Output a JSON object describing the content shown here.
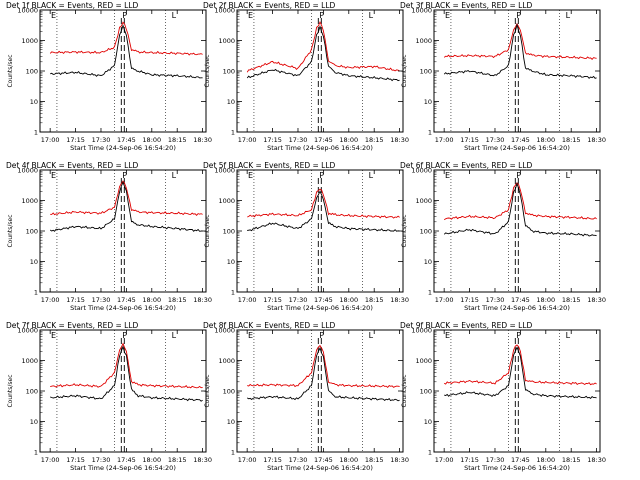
{
  "figure": {
    "title_prefix": "Det ",
    "title_suffix": " BLACK = Events, RED = LLD",
    "xlabel": "Start Time (24-Sep-06 16:54:20)",
    "ylabel": "Counts/sec",
    "x_ticks": [
      "17:00",
      "17:15",
      "17:30",
      "17:45",
      "18:00",
      "18:15",
      "18:30"
    ],
    "y_ticks": [
      "1",
      "10",
      "100",
      "1000",
      "10000"
    ],
    "markers": [
      "E",
      "P",
      "L"
    ],
    "colors": {
      "events": "#000000",
      "lld": "#e00000"
    }
  },
  "chart_data": [
    {
      "type": "line",
      "title": "Det 1f BLACK = Events, RED = LLD",
      "xlabel": "Start Time (24-Sep-06 16:54:20)",
      "ylabel": "Counts/sec",
      "y_scale": "log",
      "ylim": [
        1,
        10000
      ],
      "xlim": [
        "16:54",
        "18:32"
      ],
      "x": [
        "17:00",
        "17:15",
        "17:30",
        "17:38",
        "17:41",
        "17:43",
        "17:45",
        "17:48",
        "17:52",
        "18:00",
        "18:15",
        "18:30"
      ],
      "series": [
        {
          "name": "Events",
          "values": [
            80,
            90,
            70,
            150,
            1500,
            3000,
            1500,
            120,
            100,
            75,
            70,
            60
          ]
        },
        {
          "name": "LLD",
          "values": [
            400,
            420,
            400,
            600,
            2500,
            4000,
            2500,
            500,
            420,
            400,
            380,
            350
          ]
        }
      ]
    },
    {
      "type": "line",
      "title": "Det 2f BLACK = Events, RED = LLD",
      "xlabel": "Start Time (24-Sep-06 16:54:20)",
      "ylabel": "Counts/sec",
      "y_scale": "log",
      "ylim": [
        1,
        10000
      ],
      "xlim": [
        "16:54",
        "18:32"
      ],
      "x": [
        "17:00",
        "17:15",
        "17:30",
        "17:38",
        "17:41",
        "17:43",
        "17:45",
        "17:48",
        "17:52",
        "18:00",
        "18:15",
        "18:30"
      ],
      "series": [
        {
          "name": "Events",
          "values": [
            60,
            110,
            70,
            200,
            1500,
            2700,
            1400,
            140,
            90,
            70,
            60,
            50
          ]
        },
        {
          "name": "LLD",
          "values": [
            100,
            200,
            120,
            500,
            2500,
            4000,
            2200,
            220,
            150,
            130,
            140,
            100
          ]
        }
      ]
    },
    {
      "type": "line",
      "title": "Det 3f BLACK = Events, RED = LLD",
      "xlabel": "Start Time (24-Sep-06 16:54:20)",
      "ylabel": "Counts/sec",
      "y_scale": "log",
      "ylim": [
        1,
        10000
      ],
      "xlim": [
        "16:54",
        "18:32"
      ],
      "x": [
        "17:00",
        "17:15",
        "17:30",
        "17:38",
        "17:41",
        "17:43",
        "17:45",
        "17:48",
        "17:52",
        "18:00",
        "18:15",
        "18:30"
      ],
      "series": [
        {
          "name": "Events",
          "values": [
            80,
            100,
            70,
            150,
            1500,
            3000,
            1500,
            120,
            100,
            75,
            70,
            60
          ]
        },
        {
          "name": "LLD",
          "values": [
            300,
            320,
            300,
            500,
            2200,
            3500,
            2200,
            400,
            330,
            300,
            280,
            260
          ]
        }
      ]
    },
    {
      "type": "line",
      "title": "Det 4f BLACK = Events, RED = LLD",
      "xlabel": "Start Time (24-Sep-06 16:54:20)",
      "ylabel": "Counts/sec",
      "y_scale": "log",
      "ylim": [
        1,
        10000
      ],
      "xlim": [
        "16:54",
        "18:32"
      ],
      "x": [
        "17:00",
        "17:15",
        "17:30",
        "17:38",
        "17:41",
        "17:43",
        "17:45",
        "17:48",
        "17:52",
        "18:00",
        "18:15",
        "18:30"
      ],
      "series": [
        {
          "name": "Events",
          "values": [
            100,
            140,
            120,
            250,
            2000,
            4000,
            2000,
            200,
            160,
            140,
            120,
            100
          ]
        },
        {
          "name": "LLD",
          "values": [
            350,
            420,
            380,
            600,
            2800,
            4500,
            2600,
            500,
            420,
            400,
            380,
            350
          ]
        }
      ]
    },
    {
      "type": "line",
      "title": "Det 5f BLACK = Events, RED = LLD",
      "xlabel": "Start Time (24-Sep-06 16:54:20)",
      "ylabel": "Counts/sec",
      "y_scale": "log",
      "ylim": [
        1,
        10000
      ],
      "xlim": [
        "16:54",
        "18:32"
      ],
      "x": [
        "17:00",
        "17:15",
        "17:30",
        "17:38",
        "17:41",
        "17:43",
        "17:45",
        "17:48",
        "17:52",
        "18:00",
        "18:15",
        "18:30"
      ],
      "series": [
        {
          "name": "Events",
          "values": [
            100,
            180,
            120,
            250,
            1200,
            2000,
            1100,
            180,
            140,
            120,
            110,
            100
          ]
        },
        {
          "name": "LLD",
          "values": [
            300,
            360,
            320,
            500,
            1800,
            2500,
            1600,
            380,
            340,
            320,
            300,
            280
          ]
        }
      ]
    },
    {
      "type": "line",
      "title": "Det 6f BLACK = Events, RED = LLD",
      "xlabel": "Start Time (24-Sep-06 16:54:20)",
      "ylabel": "Counts/sec",
      "y_scale": "log",
      "ylim": [
        1,
        10000
      ],
      "xlim": [
        "16:54",
        "18:32"
      ],
      "x": [
        "17:00",
        "17:15",
        "17:30",
        "17:38",
        "17:41",
        "17:43",
        "17:45",
        "17:48",
        "17:52",
        "18:00",
        "18:15",
        "18:30"
      ],
      "series": [
        {
          "name": "Events",
          "values": [
            80,
            110,
            80,
            200,
            1800,
            3500,
            1600,
            150,
            100,
            85,
            80,
            70
          ]
        },
        {
          "name": "LLD",
          "values": [
            250,
            300,
            270,
            500,
            2500,
            4000,
            2300,
            400,
            330,
            300,
            280,
            250
          ]
        }
      ]
    },
    {
      "type": "line",
      "title": "Det 7f BLACK = Events, RED = LLD",
      "xlabel": "Start Time (24-Sep-06 16:54:20)",
      "ylabel": "Counts/sec",
      "y_scale": "log",
      "ylim": [
        1,
        10000
      ],
      "xlim": [
        "16:54",
        "18:32"
      ],
      "x": [
        "17:00",
        "17:15",
        "17:30",
        "17:38",
        "17:41",
        "17:43",
        "17:45",
        "17:48",
        "17:52",
        "18:00",
        "18:15",
        "18:30"
      ],
      "series": [
        {
          "name": "Events",
          "values": [
            60,
            70,
            55,
            150,
            1500,
            2700,
            1400,
            110,
            70,
            60,
            55,
            50
          ]
        },
        {
          "name": "LLD",
          "values": [
            140,
            160,
            140,
            400,
            2200,
            3500,
            2000,
            200,
            160,
            150,
            140,
            130
          ]
        }
      ]
    },
    {
      "type": "line",
      "title": "Det 8f BLACK = Events, RED = LLD",
      "xlabel": "Start Time (24-Sep-06 16:54:20)",
      "ylabel": "Counts/sec",
      "y_scale": "log",
      "ylim": [
        1,
        10000
      ],
      "xlim": [
        "16:54",
        "18:32"
      ],
      "x": [
        "17:00",
        "17:15",
        "17:30",
        "17:38",
        "17:41",
        "17:43",
        "17:45",
        "17:48",
        "17:52",
        "18:00",
        "18:15",
        "18:30"
      ],
      "series": [
        {
          "name": "Events",
          "values": [
            55,
            65,
            55,
            150,
            1500,
            2500,
            1300,
            100,
            65,
            60,
            55,
            50
          ]
        },
        {
          "name": "LLD",
          "values": [
            150,
            160,
            150,
            400,
            2200,
            3200,
            1900,
            200,
            160,
            150,
            145,
            140
          ]
        }
      ]
    },
    {
      "type": "line",
      "title": "Det 9f BLACK = Events, RED = LLD",
      "xlabel": "Start Time (24-Sep-06 16:54:20)",
      "ylabel": "Counts/sec",
      "y_scale": "log",
      "ylim": [
        1,
        10000
      ],
      "xlim": [
        "16:54",
        "18:32"
      ],
      "x": [
        "17:00",
        "17:15",
        "17:30",
        "17:38",
        "17:41",
        "17:43",
        "17:45",
        "17:48",
        "17:52",
        "18:00",
        "18:15",
        "18:30"
      ],
      "series": [
        {
          "name": "Events",
          "values": [
            70,
            90,
            70,
            150,
            1500,
            2700,
            1400,
            110,
            80,
            70,
            65,
            60
          ]
        },
        {
          "name": "LLD",
          "values": [
            180,
            210,
            180,
            400,
            2200,
            3500,
            2000,
            230,
            200,
            190,
            180,
            170
          ]
        }
      ]
    }
  ]
}
